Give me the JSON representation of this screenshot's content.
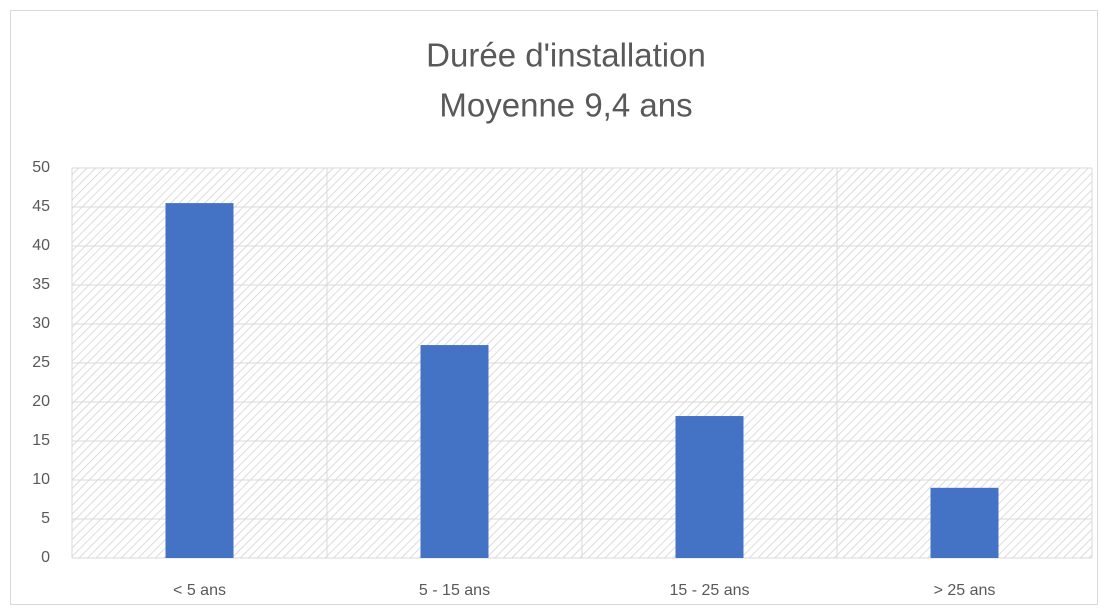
{
  "chart_data": {
    "type": "bar",
    "title": "Durée d'installation",
    "subtitle": "Moyenne 9,4 ans",
    "categories": [
      "< 5 ans",
      "5 - 15 ans",
      "15 - 25 ans",
      "> 25 ans"
    ],
    "values": [
      45.5,
      27.3,
      18.2,
      9
    ],
    "color": "#4472c4",
    "ylim": [
      0,
      50
    ],
    "yticks": [
      0,
      5,
      10,
      15,
      20,
      25,
      30,
      35,
      40,
      45,
      50
    ],
    "grid": true
  }
}
